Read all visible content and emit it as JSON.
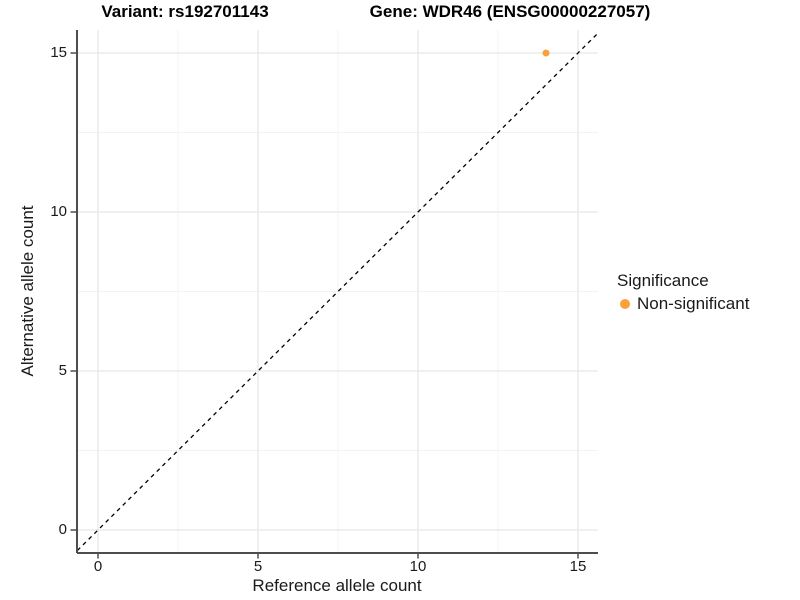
{
  "figure": {
    "title_variant": "Variant: rs192701143",
    "title_gene": "Gene: WDR46 (ENSG00000227057)"
  },
  "axes": {
    "x_label": "Reference allele count",
    "y_label": "Alternative allele count"
  },
  "legend": {
    "title": "Significance",
    "items": [
      {
        "label": "Non-significant",
        "color": "#F9A23B"
      }
    ]
  },
  "colors": {
    "background": "#FFFFFF",
    "point": "#F9A23B",
    "axis_line": "#4D4D4D",
    "tick_mark": "#4D4D4D",
    "grid_major": "#E8E8E8",
    "grid_minor": "#F3F3F3",
    "identity_line": "#000000",
    "text": "#1A1A1A"
  },
  "chart_data": {
    "type": "scatter",
    "title": "Variant: rs192701143   Gene: WDR46 (ENSG00000227057)",
    "xlabel": "Reference allele count",
    "ylabel": "Alternative allele count",
    "xlim": [
      -0.65,
      15.72
    ],
    "ylim": [
      -0.72,
      15.72
    ],
    "x_ticks": [
      0,
      5,
      10,
      15
    ],
    "y_ticks": [
      0,
      5,
      10,
      15
    ],
    "grid": "major and minor gridlines, light gray on white",
    "legend_position": "right",
    "series": [
      {
        "name": "Non-significant",
        "color": "#F9A23B",
        "marker": "circle",
        "points": [
          {
            "x": 14,
            "y": 15
          }
        ]
      }
    ],
    "reference_line": {
      "slope": 1,
      "intercept": 0,
      "style": "dashed",
      "color": "#000000"
    }
  }
}
